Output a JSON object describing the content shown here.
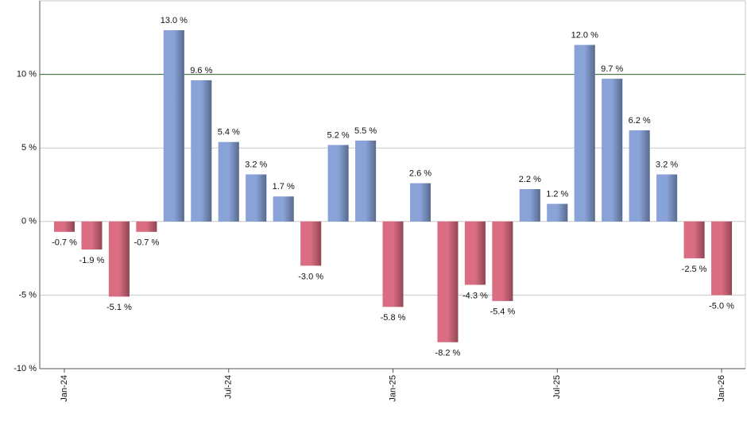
{
  "chart_data": {
    "type": "bar",
    "categories": [
      "Jan-24",
      null,
      null,
      null,
      null,
      null,
      "Jul-24",
      null,
      null,
      null,
      null,
      null,
      "Jan-25",
      null,
      null,
      null,
      null,
      null,
      "Jul-25",
      null,
      null,
      null,
      null,
      null,
      "Jan-26"
    ],
    "values": [
      -0.7,
      -1.9,
      -5.1,
      -0.7,
      13.0,
      9.6,
      5.4,
      3.2,
      1.7,
      -3.0,
      5.2,
      5.5,
      -5.8,
      2.6,
      -8.2,
      -4.3,
      -5.4,
      2.2,
      1.2,
      12.0,
      9.7,
      6.2,
      3.2,
      -2.5,
      -5.0
    ],
    "value_labels": [
      "-0.7 %",
      "-1.9 %",
      "-5.1 %",
      "-0.7 %",
      "13.0 %",
      "9.6 %",
      "5.4 %",
      "3.2 %",
      "1.7 %",
      "-3.0 %",
      "5.2 %",
      "5.5 %",
      "-5.8 %",
      "2.6 %",
      "-8.2 %",
      "-4.3 %",
      "-5.4 %",
      "2.2 %",
      "1.2 %",
      "12.0 %",
      "9.7 %",
      "6.2 %",
      "3.2 %",
      "-2.5 %",
      "-5.0 %"
    ],
    "positive_color": "#4a72c4",
    "negative_color": "#c8203f",
    "ylim": [
      -10,
      15
    ],
    "yticks": [
      {
        "value": -10,
        "label": "-10 %"
      },
      {
        "value": -5,
        "label": "-5 %"
      },
      {
        "value": 0,
        "label": "0 %"
      },
      {
        "value": 5,
        "label": "5 %"
      },
      {
        "value": 10,
        "label": "10 %"
      }
    ],
    "reference_line": {
      "value": 10,
      "color": "#2e6b2e"
    },
    "grid": true
  }
}
